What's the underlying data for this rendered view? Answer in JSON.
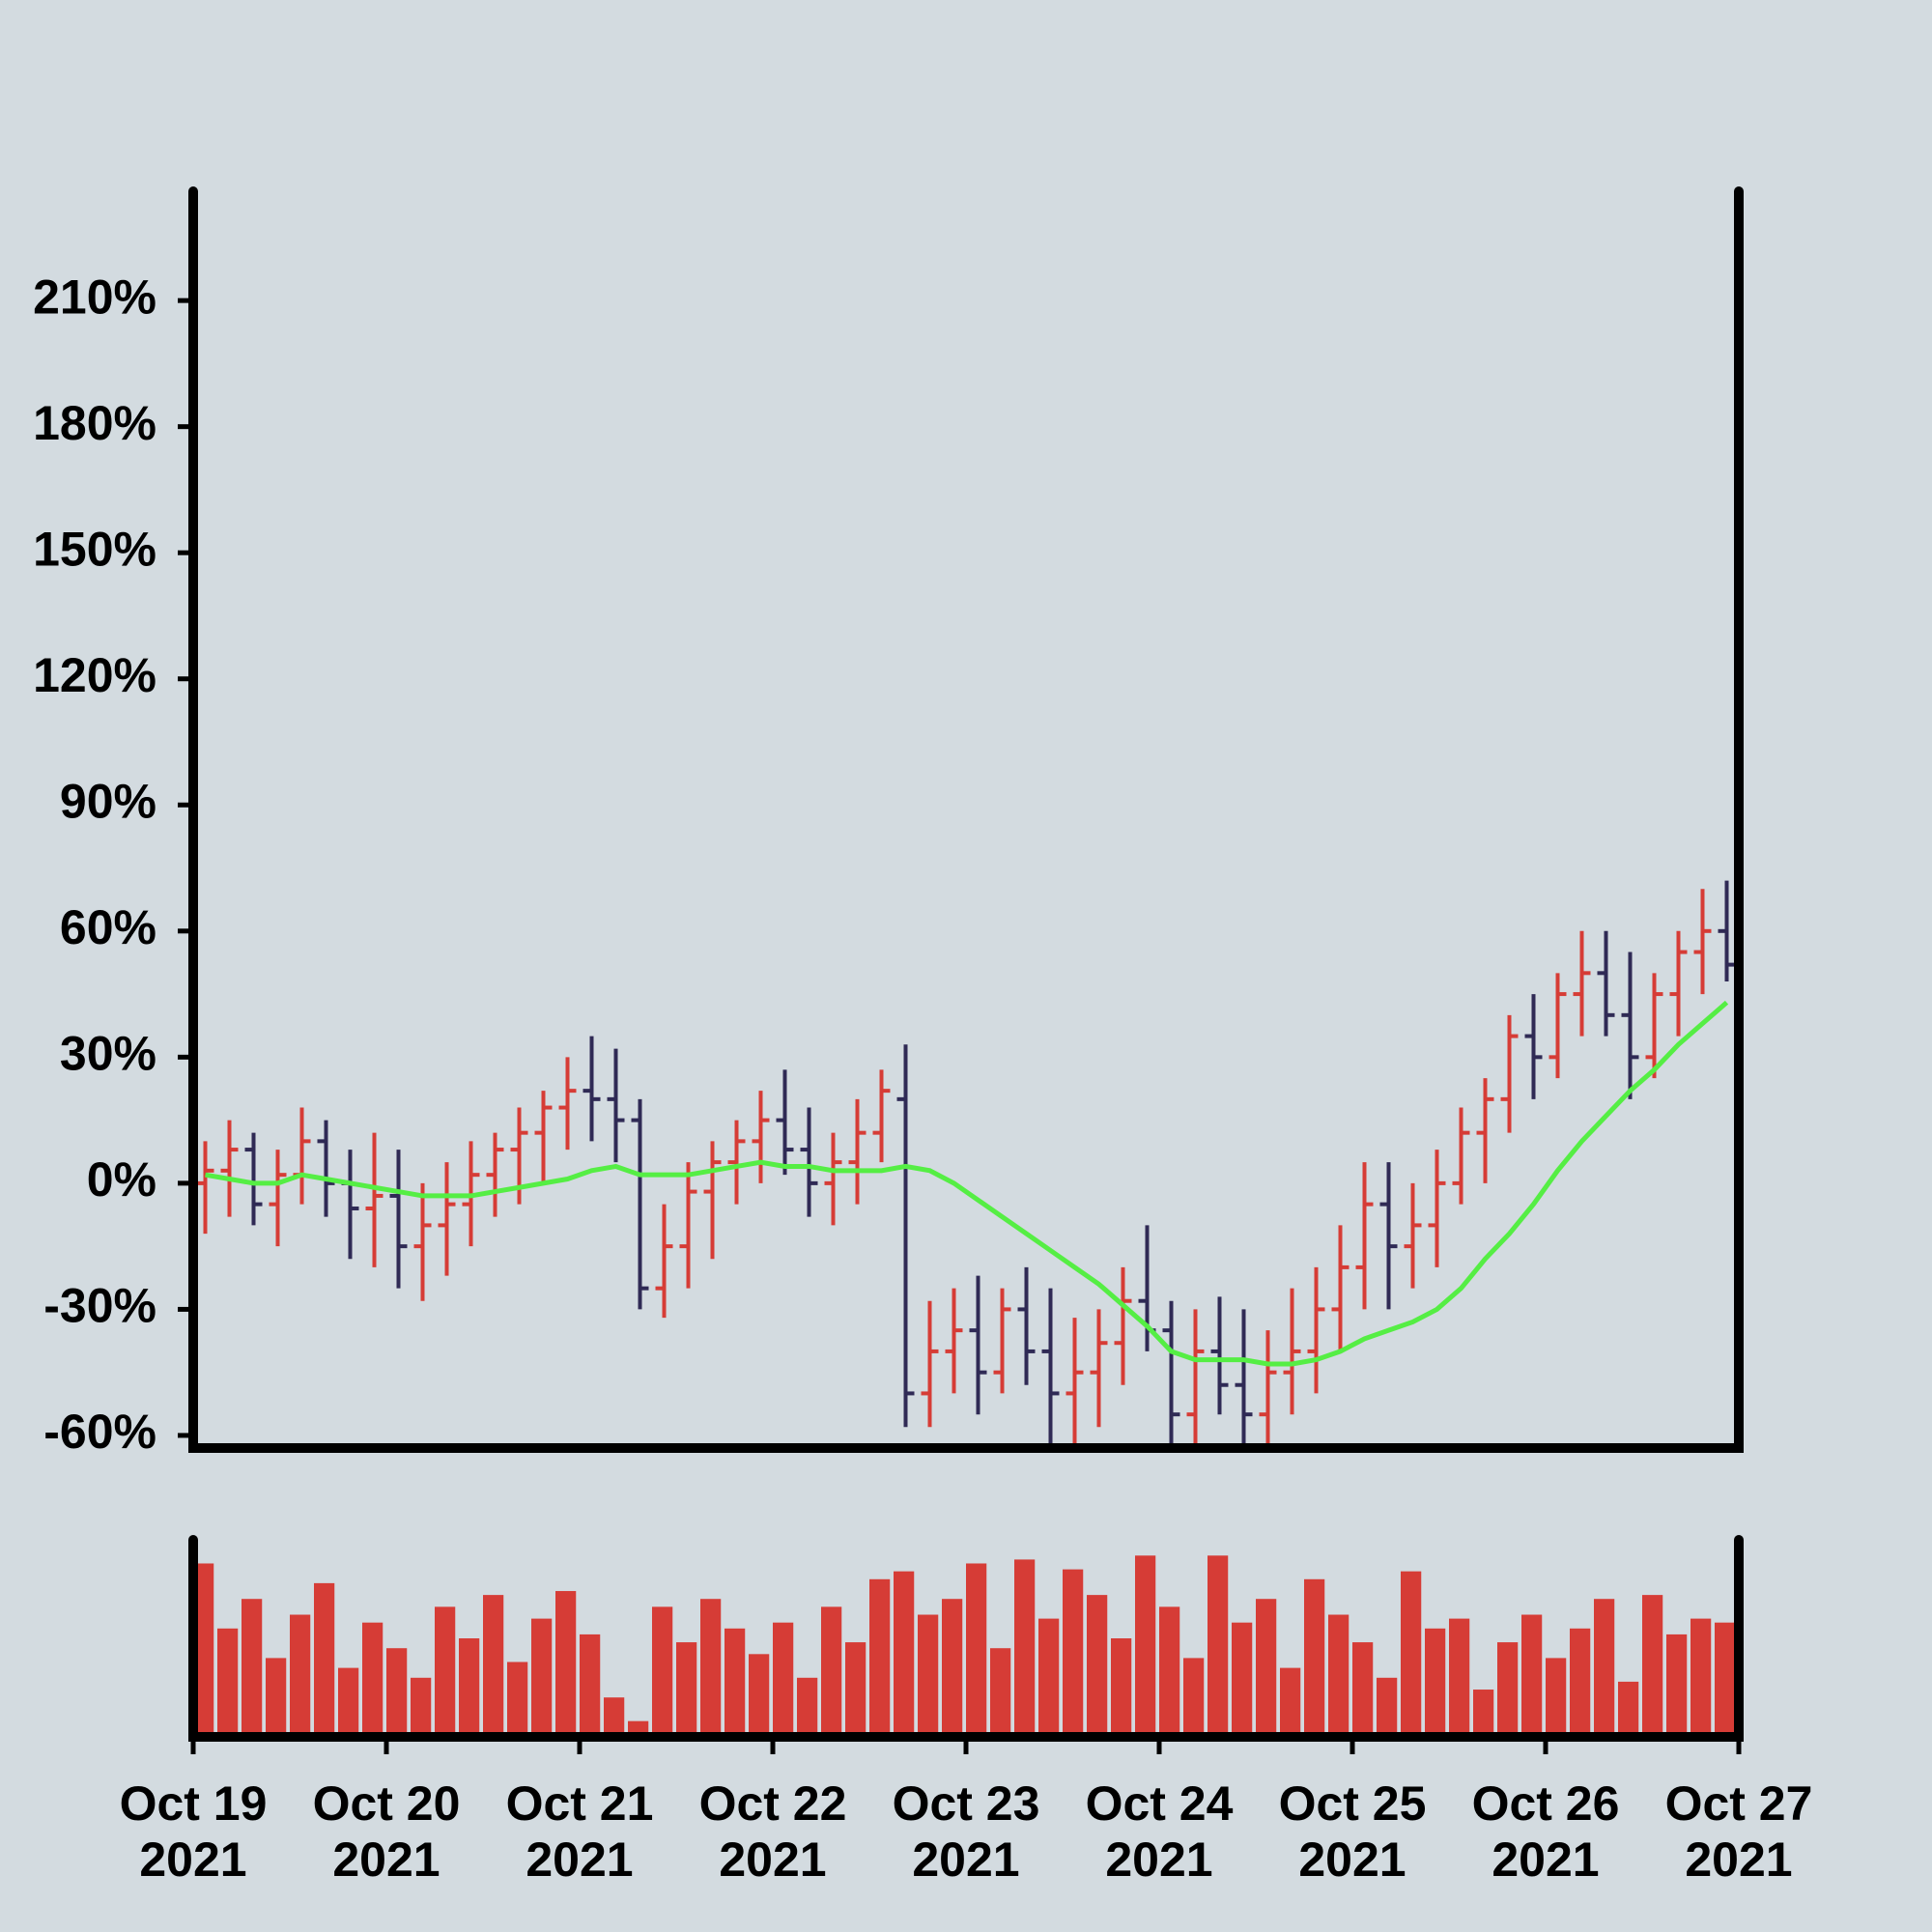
{
  "chart_data": {
    "type": "ohlc",
    "x": [
      "2021-10-19 00:00",
      "2021-10-19 03:00",
      "2021-10-19 06:00",
      "2021-10-19 09:00",
      "2021-10-19 12:00",
      "2021-10-19 15:00",
      "2021-10-19 18:00",
      "2021-10-19 21:00",
      "2021-10-20 00:00",
      "2021-10-20 03:00",
      "2021-10-20 06:00",
      "2021-10-20 09:00",
      "2021-10-20 12:00",
      "2021-10-20 15:00",
      "2021-10-20 18:00",
      "2021-10-20 21:00",
      "2021-10-21 00:00",
      "2021-10-21 03:00",
      "2021-10-21 06:00",
      "2021-10-21 09:00",
      "2021-10-21 12:00",
      "2021-10-21 15:00",
      "2021-10-21 18:00",
      "2021-10-21 21:00",
      "2021-10-22 00:00",
      "2021-10-22 03:00",
      "2021-10-22 06:00",
      "2021-10-22 09:00",
      "2021-10-22 12:00",
      "2021-10-22 15:00",
      "2021-10-22 18:00",
      "2021-10-22 21:00",
      "2021-10-23 00:00",
      "2021-10-23 03:00",
      "2021-10-23 06:00",
      "2021-10-23 09:00",
      "2021-10-23 12:00",
      "2021-10-23 15:00",
      "2021-10-23 18:00",
      "2021-10-23 21:00",
      "2021-10-24 00:00",
      "2021-10-24 03:00",
      "2021-10-24 06:00",
      "2021-10-24 09:00",
      "2021-10-24 12:00",
      "2021-10-24 15:00",
      "2021-10-24 18:00",
      "2021-10-24 21:00",
      "2021-10-25 00:00",
      "2021-10-25 03:00",
      "2021-10-25 06:00",
      "2021-10-25 09:00",
      "2021-10-25 12:00",
      "2021-10-25 15:00",
      "2021-10-25 18:00",
      "2021-10-25 21:00",
      "2021-10-26 00:00",
      "2021-10-26 03:00",
      "2021-10-26 06:00",
      "2021-10-26 09:00",
      "2021-10-26 12:00",
      "2021-10-26 15:00",
      "2021-10-26 18:00",
      "2021-10-26 21:00"
    ],
    "open": [
      0,
      3,
      8,
      -5,
      2,
      10,
      0,
      -6,
      -3,
      -15,
      -10,
      -5,
      2,
      8,
      12,
      18,
      22,
      20,
      15,
      -25,
      -15,
      -2,
      5,
      10,
      15,
      8,
      0,
      5,
      12,
      20,
      -50,
      -40,
      -35,
      -45,
      -30,
      -40,
      -50,
      -45,
      -38,
      -28,
      -35,
      -55,
      -40,
      -48,
      -55,
      -45,
      -40,
      -30,
      -20,
      -5,
      -15,
      -10,
      0,
      12,
      20,
      35,
      30,
      45,
      50,
      40,
      30,
      45,
      55,
      60
    ],
    "high": [
      10,
      15,
      12,
      8,
      18,
      15,
      8,
      12,
      8,
      0,
      5,
      10,
      12,
      18,
      22,
      30,
      35,
      32,
      20,
      -5,
      5,
      10,
      15,
      22,
      27,
      18,
      12,
      20,
      27,
      33,
      -28,
      -25,
      -22,
      -25,
      -20,
      -25,
      -32,
      -30,
      -20,
      -10,
      -28,
      -30,
      -27,
      -30,
      -35,
      -25,
      -20,
      -10,
      5,
      5,
      0,
      8,
      18,
      25,
      40,
      45,
      50,
      60,
      60,
      55,
      50,
      60,
      70,
      72
    ],
    "low": [
      -12,
      -8,
      -10,
      -15,
      -5,
      -8,
      -18,
      -20,
      -25,
      -28,
      -22,
      -15,
      -8,
      -5,
      0,
      8,
      10,
      5,
      -30,
      -32,
      -25,
      -18,
      -5,
      0,
      2,
      -8,
      -10,
      -5,
      5,
      -58,
      -58,
      -50,
      -55,
      -50,
      -48,
      -62,
      -62,
      -58,
      -48,
      -40,
      -62,
      -62,
      -55,
      -62,
      -62,
      -55,
      -50,
      -40,
      -30,
      -30,
      -25,
      -20,
      -5,
      0,
      12,
      20,
      25,
      35,
      35,
      20,
      25,
      35,
      45,
      48
    ],
    "close": [
      3,
      8,
      -5,
      2,
      10,
      0,
      -6,
      -3,
      -15,
      -10,
      -5,
      2,
      8,
      12,
      18,
      22,
      20,
      15,
      -25,
      -15,
      -2,
      5,
      10,
      15,
      8,
      0,
      5,
      12,
      22,
      -50,
      -40,
      -35,
      -45,
      -30,
      -40,
      -50,
      -45,
      -38,
      -28,
      -35,
      -55,
      -40,
      -48,
      -55,
      -45,
      -40,
      -30,
      -20,
      -5,
      -15,
      -10,
      0,
      12,
      20,
      35,
      30,
      45,
      50,
      40,
      30,
      45,
      55,
      60,
      52
    ],
    "up_color": "#d63c36",
    "down_color": "#2f2a55",
    "ma": {
      "color": "#55ee44",
      "values": [
        2,
        1,
        0,
        0,
        2,
        1,
        0,
        -1,
        -2,
        -3,
        -3,
        -3,
        -2,
        -1,
        0,
        1,
        3,
        4,
        2,
        2,
        2,
        3,
        4,
        5,
        4,
        4,
        3,
        3,
        3,
        4,
        3,
        0,
        -4,
        -8,
        -12,
        -16,
        -20,
        -24,
        -29,
        -34,
        -40,
        -42,
        -42,
        -42,
        -43,
        -43,
        -42,
        -40,
        -37,
        -35,
        -33,
        -30,
        -25,
        -18,
        -12,
        -5,
        3,
        10,
        16,
        22,
        27,
        33,
        38,
        43
      ]
    },
    "volume": {
      "color": "#d63c36",
      "ylim": [
        0,
        100
      ],
      "values": [
        88,
        55,
        70,
        40,
        62,
        78,
        35,
        58,
        45,
        30,
        66,
        50,
        72,
        38,
        60,
        74,
        52,
        20,
        8,
        66,
        48,
        70,
        55,
        42,
        58,
        30,
        66,
        48,
        80,
        84,
        62,
        70,
        88,
        45,
        90,
        60,
        85,
        72,
        50,
        92,
        66,
        40,
        92,
        58,
        70,
        35,
        80,
        62,
        48,
        30,
        84,
        55,
        60,
        24,
        48,
        62,
        40,
        55,
        70,
        28,
        72,
        52,
        60,
        58
      ]
    },
    "xlim": [
      "2021-10-19",
      "2021-10-27"
    ],
    "xticks": [
      {
        "value": "2021-10-19",
        "label": "Oct 19\n2021"
      },
      {
        "value": "2021-10-20",
        "label": "Oct 20\n2021"
      },
      {
        "value": "2021-10-21",
        "label": "Oct 21\n2021"
      },
      {
        "value": "2021-10-22",
        "label": "Oct 22\n2021"
      },
      {
        "value": "2021-10-23",
        "label": "Oct 23\n2021"
      },
      {
        "value": "2021-10-24",
        "label": "Oct 24\n2021"
      },
      {
        "value": "2021-10-25",
        "label": "Oct 25\n2021"
      },
      {
        "value": "2021-10-26",
        "label": "Oct 26\n2021"
      },
      {
        "value": "2021-10-27",
        "label": "Oct 27\n2021"
      }
    ],
    "ylim": [
      -63,
      236
    ],
    "yticks": [
      {
        "value": -60,
        "label": "-60%"
      },
      {
        "value": -30,
        "label": "-30%"
      },
      {
        "value": 0,
        "label": "0%"
      },
      {
        "value": 30,
        "label": "30%"
      },
      {
        "value": 60,
        "label": "60%"
      },
      {
        "value": 90,
        "label": "90%"
      },
      {
        "value": 120,
        "label": "120%"
      },
      {
        "value": 150,
        "label": "150%"
      },
      {
        "value": 180,
        "label": "180%"
      },
      {
        "value": 210,
        "label": "210%"
      }
    ]
  }
}
